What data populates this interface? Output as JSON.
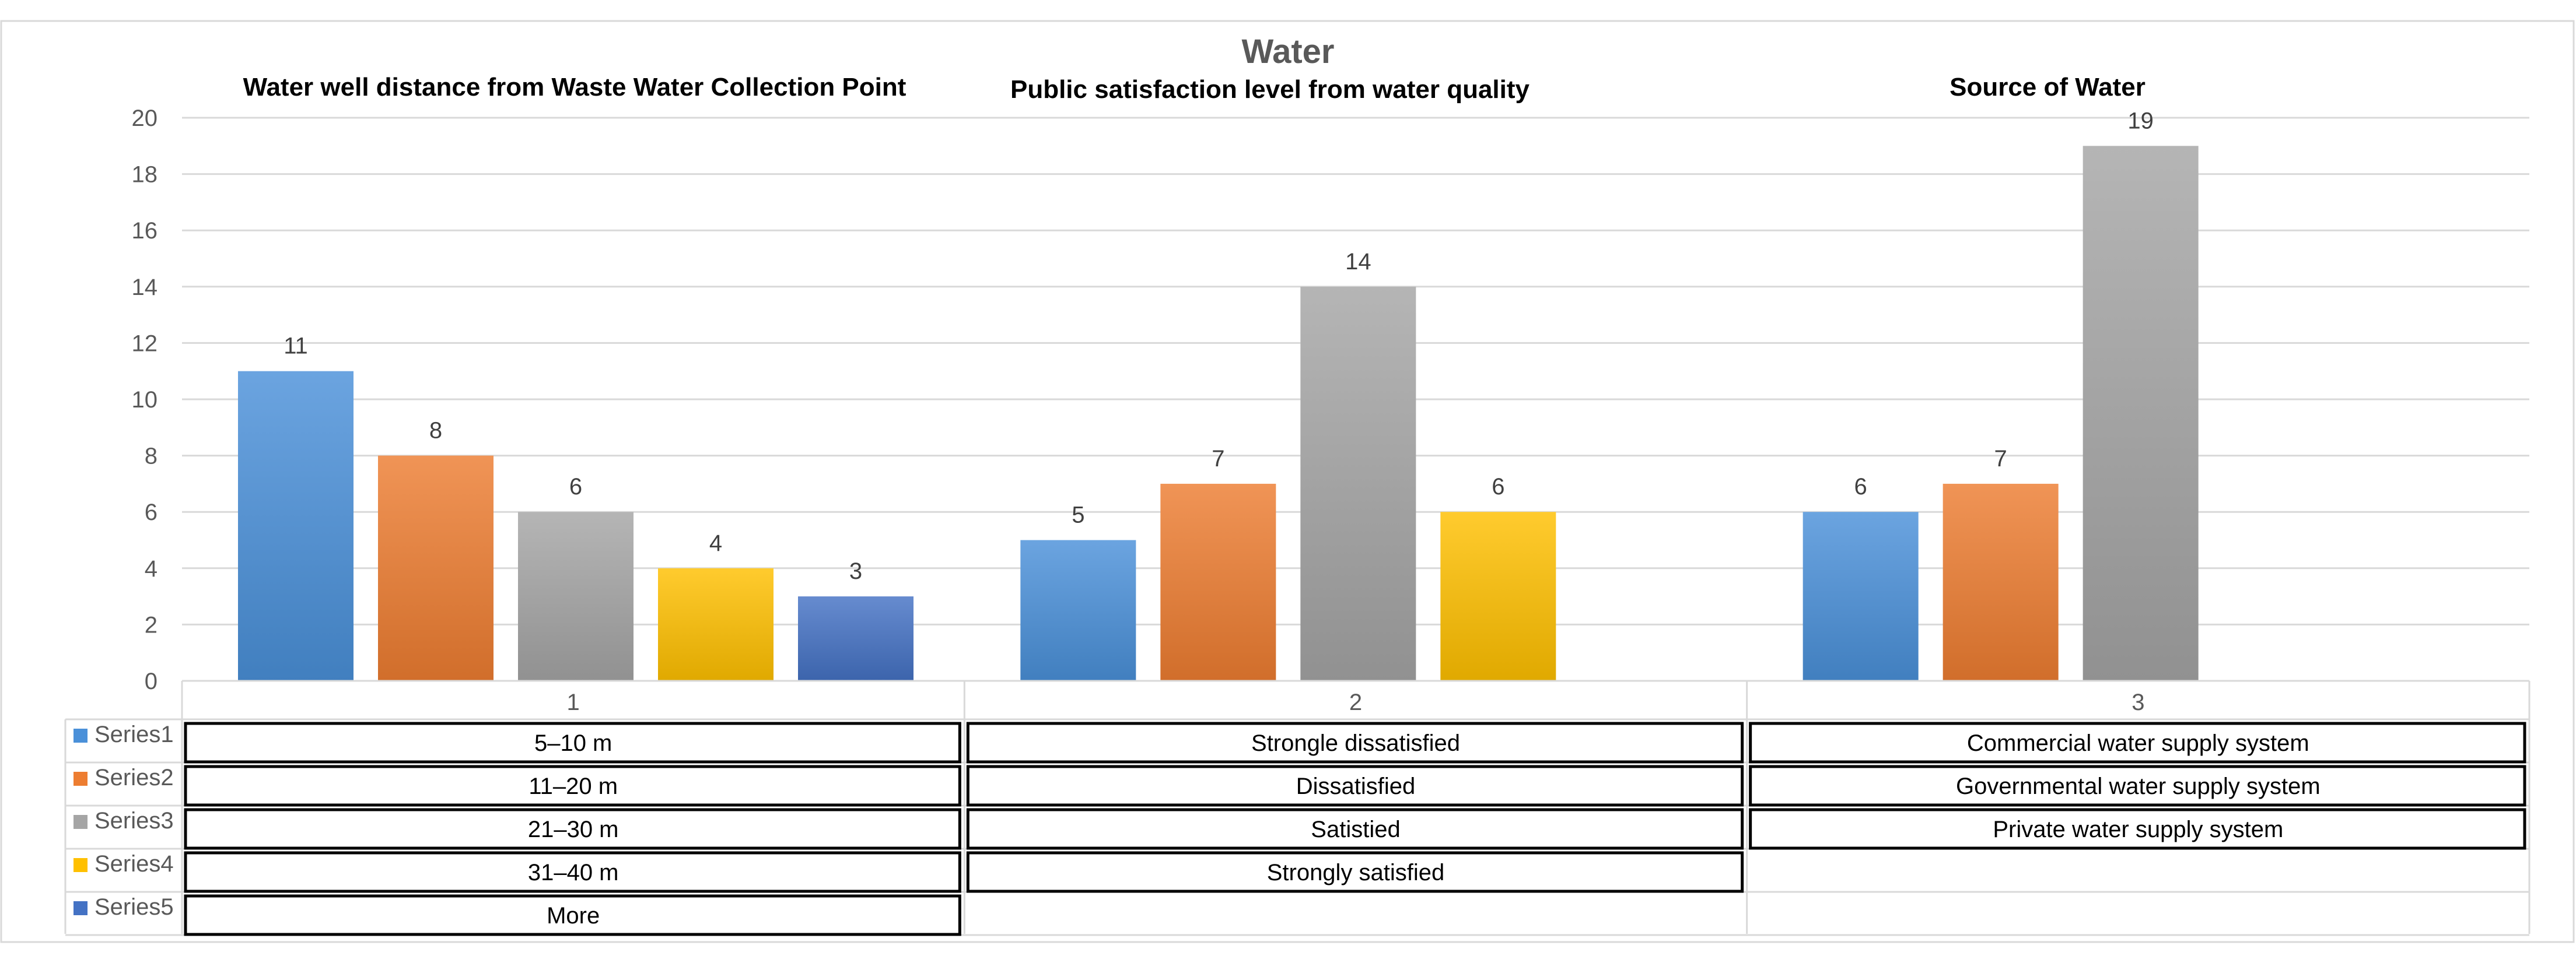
{
  "chart_data": {
    "type": "bar",
    "title": "Water",
    "subtitles": [
      "Water well distance from Waste Water Collection Point",
      "Public satisfaction level from water quality",
      "Source of Water"
    ],
    "categories": [
      "1",
      "2",
      "3"
    ],
    "series": [
      {
        "name": "Series1",
        "color": "#4A90D9",
        "values": [
          11,
          5,
          6
        ]
      },
      {
        "name": "Series2",
        "color": "#ED7D31",
        "values": [
          8,
          7,
          7
        ]
      },
      {
        "name": "Series3",
        "color": "#A5A5A5",
        "values": [
          6,
          14,
          19
        ]
      },
      {
        "name": "Series4",
        "color": "#FFC000",
        "values": [
          4,
          6,
          null
        ]
      },
      {
        "name": "Series5",
        "color": "#4472C4",
        "values": [
          3,
          null,
          null
        ]
      }
    ],
    "table": [
      [
        "5–10 m",
        "Strongle dissatisfied",
        "Commercial water supply system"
      ],
      [
        "11–20 m",
        "Dissatisfied",
        "Governmental water supply system"
      ],
      [
        "21–30 m",
        "Satistied",
        "Private water supply system"
      ],
      [
        "31–40 m",
        "Strongly satisfied",
        ""
      ],
      [
        "More",
        "",
        ""
      ]
    ],
    "ylim": [
      0,
      20
    ],
    "yticks": [
      0,
      2,
      4,
      6,
      8,
      10,
      12,
      14,
      16,
      18,
      20
    ],
    "xlabel": "",
    "ylabel": "",
    "grid": true,
    "legend": "table-left"
  }
}
